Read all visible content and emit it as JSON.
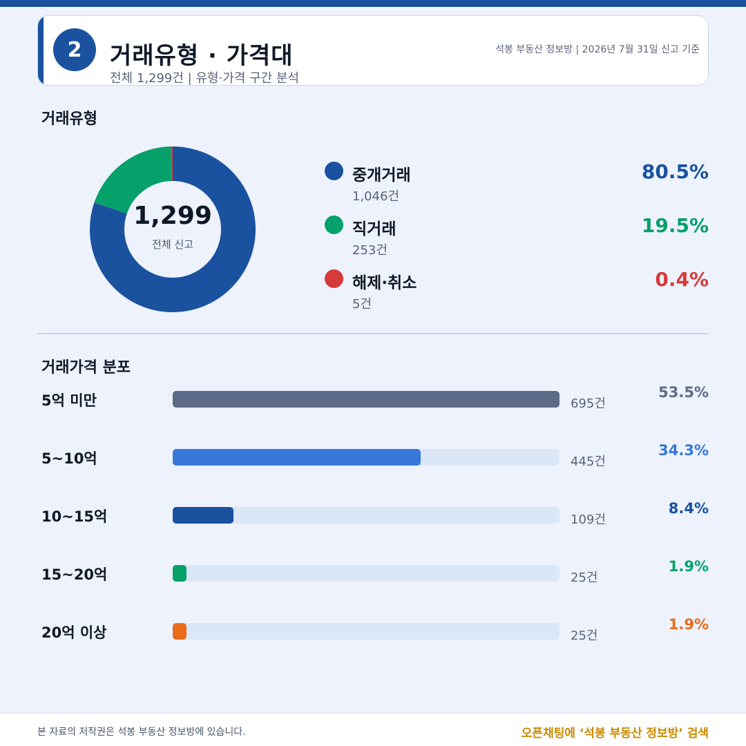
{
  "header": {
    "badge_number": "2",
    "title": "거래유형 · 가격대",
    "subtitle": "전체 1,299건 | 유형·가격 구간 분석",
    "meta": "석봉 부동산 정보방 | 2026년 7월 31일 신고 기준"
  },
  "colors": {
    "brand": "#1a52a0",
    "brokered": "#1a52a0",
    "direct": "#06a06a",
    "cancelled": "#d63a3a",
    "under5": "#5b6b87",
    "5to10": "#3578d8",
    "10to15": "#1a52a0",
    "15to20": "#06a06a",
    "over20": "#ec6a1c",
    "footer_accent": "#c98a00"
  },
  "chart_data": [
    {
      "type": "pie",
      "title": "거래유형",
      "center_value": "1,299",
      "center_label": "전체 신고",
      "slices": [
        {
          "name": "중개거래",
          "value": 1046,
          "count_label": "1,046건",
          "percent": 80.5,
          "percent_label": "80.5%",
          "color": "#1a52a0"
        },
        {
          "name": "직거래",
          "value": 253,
          "count_label": "253건",
          "percent": 19.5,
          "percent_label": "19.5%",
          "color": "#06a06a"
        },
        {
          "name": "해제·취소",
          "value": 5,
          "count_label": "5건",
          "percent": 0.4,
          "percent_label": "0.4%",
          "color": "#d63a3a"
        }
      ]
    },
    {
      "type": "bar",
      "title": "거래가격 분포",
      "max_value": 695,
      "bars": [
        {
          "category": "5억 미만",
          "value": 695,
          "count_label": "695건",
          "percent_label": "53.5%",
          "color": "#5b6b87"
        },
        {
          "category": "5~10억",
          "value": 445,
          "count_label": "445건",
          "percent_label": "34.3%",
          "color": "#3578d8"
        },
        {
          "category": "10~15억",
          "value": 109,
          "count_label": "109건",
          "percent_label": "8.4%",
          "color": "#1a52a0"
        },
        {
          "category": "15~20억",
          "value": 25,
          "count_label": "25건",
          "percent_label": "1.9%",
          "color": "#06a06a"
        },
        {
          "category": "20억 이상",
          "value": 25,
          "count_label": "25건",
          "percent_label": "1.9%",
          "color": "#ec6a1c"
        }
      ]
    }
  ],
  "footer": {
    "copyright": "본 자료의 저작권은 석봉 부동산 정보방에 있습니다.",
    "cta": "오픈채팅에 ‘석봉 부동산 정보방’ 검색"
  }
}
